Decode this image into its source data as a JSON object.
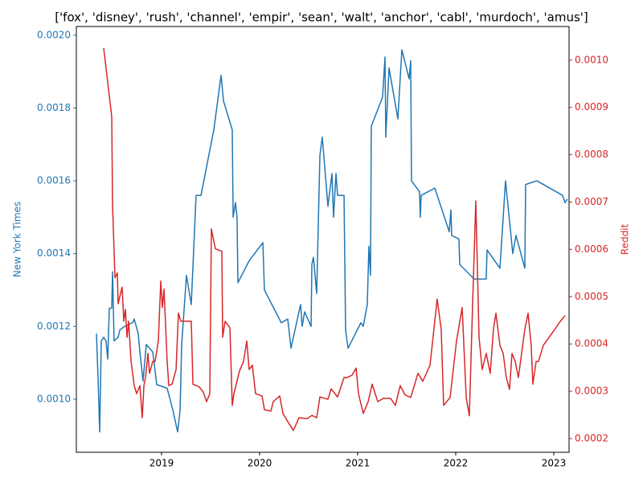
{
  "chart_data": {
    "type": "line",
    "title": "['fox', 'disney', 'rush', 'channel', 'empir', 'sean', 'walt', 'anchor', 'cabl', 'murdoch', 'amus']",
    "xlim": [
      2018.131,
      2023.156
    ],
    "xticks": [
      2019,
      2020,
      2021,
      2022,
      2023
    ],
    "ylabel": "New York Times",
    "y2label": "Reddit",
    "ylim": [
      0.000854,
      0.002024
    ],
    "yticks": [
      {
        "value": 0.001,
        "label": "0.0010"
      },
      {
        "value": 0.0012,
        "label": "0.0012"
      },
      {
        "value": 0.0014,
        "label": "0.0014"
      },
      {
        "value": 0.0016,
        "label": "0.0016"
      },
      {
        "value": 0.0018,
        "label": "0.0018"
      },
      {
        "value": 0.002,
        "label": "0.0020"
      }
    ],
    "y2lim": [
      0.000171,
      0.001071
    ],
    "y2ticks": [
      {
        "value": 0.0002,
        "label": "0.0002"
      },
      {
        "value": 0.0003,
        "label": "0.0003"
      },
      {
        "value": 0.0004,
        "label": "0.0004"
      },
      {
        "value": 0.0005,
        "label": "0.0005"
      },
      {
        "value": 0.0006,
        "label": "0.0006"
      },
      {
        "value": 0.0007,
        "label": "0.0007"
      },
      {
        "value": 0.0008,
        "label": "0.0008"
      },
      {
        "value": 0.0009,
        "label": "0.0009"
      },
      {
        "value": 0.001,
        "label": "0.0010"
      }
    ],
    "series": [
      {
        "name": "New York Times",
        "color": "#1f77b4",
        "axis": "y",
        "x": [
          2018.336,
          2018.352,
          2018.369,
          2018.385,
          2018.41,
          2018.434,
          2018.451,
          2018.467,
          2018.492,
          2018.5,
          2018.516,
          2018.557,
          2018.574,
          2018.623,
          2018.705,
          2018.721,
          2018.762,
          2018.779,
          2018.811,
          2018.844,
          2018.877,
          2018.91,
          2018.951,
          2019.057,
          2019.115,
          2019.164,
          2019.189,
          2019.205,
          2019.254,
          2019.303,
          2019.352,
          2019.402,
          2019.533,
          2019.607,
          2019.631,
          2019.721,
          2019.73,
          2019.754,
          2019.77,
          2019.779,
          2019.893,
          2020.033,
          2020.049,
          2020.221,
          2020.287,
          2020.32,
          2020.418,
          2020.434,
          2020.459,
          2020.525,
          2020.533,
          2020.549,
          2020.582,
          2020.615,
          2020.639,
          2020.697,
          2020.738,
          2020.754,
          2020.779,
          2020.795,
          2020.861,
          2020.877,
          2020.902,
          2021.033,
          2021.057,
          2021.098,
          2021.115,
          2021.131,
          2021.139,
          2021.254,
          2021.279,
          2021.287,
          2021.32,
          2021.41,
          2021.451,
          2021.525,
          2021.541,
          2021.549,
          2021.631,
          2021.639,
          2021.648,
          2021.787,
          2021.934,
          2021.951,
          2021.959,
          2022.033,
          2022.041,
          2022.189,
          2022.311,
          2022.32,
          2022.451,
          2022.508,
          2022.582,
          2022.615,
          2022.705,
          2022.713,
          2022.828,
          2023.09,
          2023.115,
          2023.139
        ],
        "values": [
          0.00118,
          0.00106,
          0.00091,
          0.00116,
          0.00117,
          0.00116,
          0.00111,
          0.00125,
          0.00125,
          0.00135,
          0.00116,
          0.00117,
          0.00119,
          0.0012,
          0.00121,
          0.00122,
          0.00118,
          0.00113,
          0.00105,
          0.00115,
          0.00114,
          0.00113,
          0.00104,
          0.00103,
          0.00097,
          0.00091,
          0.00097,
          0.00115,
          0.00134,
          0.00126,
          0.00156,
          0.00156,
          0.00174,
          0.00189,
          0.00182,
          0.00174,
          0.0015,
          0.00154,
          0.0015,
          0.00132,
          0.00138,
          0.00143,
          0.0013,
          0.00121,
          0.00122,
          0.00114,
          0.00126,
          0.0012,
          0.00124,
          0.0012,
          0.00137,
          0.00139,
          0.00129,
          0.00167,
          0.00172,
          0.00153,
          0.00162,
          0.0015,
          0.00162,
          0.00156,
          0.00156,
          0.00119,
          0.00114,
          0.00121,
          0.0012,
          0.00126,
          0.00142,
          0.00134,
          0.00175,
          0.00183,
          0.00194,
          0.00172,
          0.00191,
          0.00177,
          0.00196,
          0.00188,
          0.00193,
          0.0016,
          0.00157,
          0.0015,
          0.00156,
          0.00158,
          0.00146,
          0.00152,
          0.00145,
          0.00144,
          0.00137,
          0.00133,
          0.00133,
          0.00141,
          0.00136,
          0.0016,
          0.0014,
          0.00145,
          0.00136,
          0.00159,
          0.0016,
          0.00156,
          0.00154,
          0.00155
        ]
      },
      {
        "name": "Reddit",
        "color": "#d62728",
        "axis": "y2",
        "x": [
          2018.41,
          2018.492,
          2018.5,
          2018.525,
          2018.549,
          2018.557,
          2018.598,
          2018.615,
          2018.631,
          2018.648,
          2018.664,
          2018.689,
          2018.721,
          2018.746,
          2018.779,
          2018.803,
          2018.82,
          2018.836,
          2018.861,
          2018.877,
          2018.91,
          2018.934,
          2018.967,
          2018.992,
          2019.008,
          2019.025,
          2019.057,
          2019.074,
          2019.107,
          2019.148,
          2019.172,
          2019.197,
          2019.287,
          2019.303,
          2019.32,
          2019.385,
          2019.426,
          2019.459,
          2019.492,
          2019.508,
          2019.549,
          2019.615,
          2019.623,
          2019.648,
          2019.697,
          2019.721,
          2019.738,
          2019.795,
          2019.836,
          2019.869,
          2019.893,
          2019.926,
          2019.959,
          2020.025,
          2020.049,
          2020.115,
          2020.139,
          2020.205,
          2020.238,
          2020.287,
          2020.344,
          2020.402,
          2020.484,
          2020.533,
          2020.582,
          2020.615,
          2020.697,
          2020.73,
          2020.795,
          2020.861,
          2020.893,
          2020.943,
          2020.984,
          2021.008,
          2021.057,
          2021.107,
          2021.148,
          2021.205,
          2021.262,
          2021.336,
          2021.385,
          2021.434,
          2021.484,
          2021.541,
          2021.615,
          2021.664,
          2021.738,
          2021.811,
          2021.852,
          2021.877,
          2021.943,
          2022.008,
          2022.066,
          2022.107,
          2022.139,
          2022.172,
          2022.205,
          2022.238,
          2022.27,
          2022.311,
          2022.352,
          2022.385,
          2022.41,
          2022.451,
          2022.484,
          2022.516,
          2022.549,
          2022.574,
          2022.607,
          2022.639,
          2022.672,
          2022.705,
          2022.738,
          2022.77,
          2022.787,
          2022.82,
          2022.844,
          2022.869,
          2022.893,
          2023.008,
          2023.057,
          2023.115
        ],
        "values": [
          0.001025,
          0.00088,
          0.000694,
          0.00054,
          0.00055,
          0.000485,
          0.00052,
          0.000448,
          0.000473,
          0.000414,
          0.000448,
          0.000363,
          0.000312,
          0.000295,
          0.000312,
          0.000244,
          0.000312,
          0.000329,
          0.00038,
          0.000338,
          0.000363,
          0.000363,
          0.000406,
          0.000533,
          0.000477,
          0.000516,
          0.000363,
          0.000312,
          0.000315,
          0.000346,
          0.000465,
          0.000448,
          0.000448,
          0.000448,
          0.000315,
          0.000309,
          0.000298,
          0.000278,
          0.000295,
          0.000643,
          0.000601,
          0.000596,
          0.000414,
          0.000448,
          0.000434,
          0.00027,
          0.000295,
          0.000343,
          0.000363,
          0.000406,
          0.000346,
          0.000355,
          0.000295,
          0.00029,
          0.000261,
          0.000258,
          0.000278,
          0.00029,
          0.000253,
          0.000236,
          0.000217,
          0.000244,
          0.000242,
          0.000249,
          0.000244,
          0.000288,
          0.000283,
          0.000305,
          0.000288,
          0.000329,
          0.000329,
          0.000334,
          0.000349,
          0.000295,
          0.000253,
          0.000278,
          0.000315,
          0.000278,
          0.000285,
          0.000285,
          0.00027,
          0.000312,
          0.000292,
          0.000287,
          0.000338,
          0.000321,
          0.000355,
          0.000495,
          0.000431,
          0.00027,
          0.000287,
          0.000406,
          0.000477,
          0.000287,
          0.000248,
          0.000482,
          0.000702,
          0.000414,
          0.000346,
          0.00038,
          0.000338,
          0.000431,
          0.000465,
          0.000397,
          0.00038,
          0.000329,
          0.000304,
          0.00038,
          0.000363,
          0.000329,
          0.00038,
          0.000431,
          0.000465,
          0.000397,
          0.000315,
          0.000363,
          0.000363,
          0.00038,
          0.000397,
          0.00043,
          0.000445,
          0.00046
        ]
      }
    ]
  }
}
